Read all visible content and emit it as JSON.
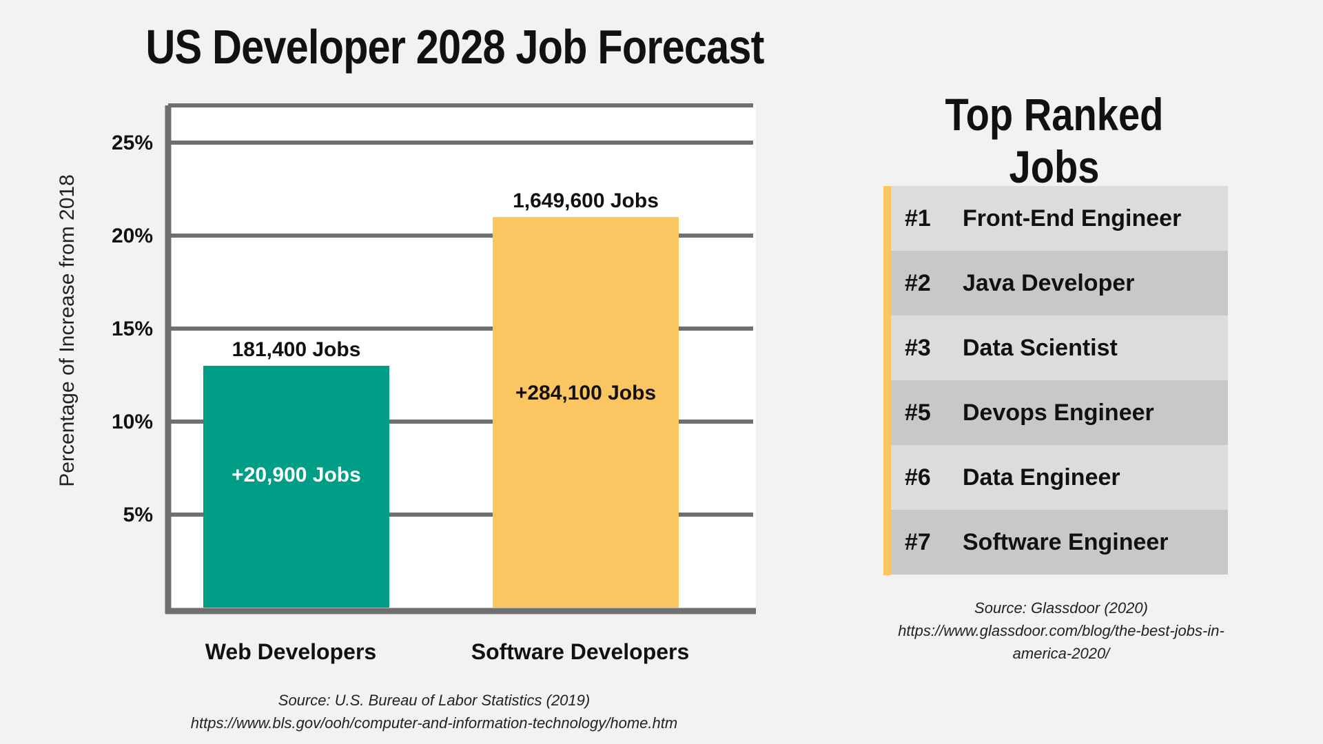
{
  "chart_data": {
    "type": "bar",
    "title": "US Developer 2028 Job Forecast",
    "ylabel": "Percentage of Increase from 2018",
    "xlabel": "",
    "ylim": [
      0,
      27
    ],
    "yticks": [
      5,
      10,
      15,
      20,
      25
    ],
    "ytick_labels": [
      "5%",
      "10%",
      "15%",
      "20%",
      "25%"
    ],
    "grid": true,
    "categories": [
      "Web Developers",
      "Software Developers"
    ],
    "values": [
      13,
      21
    ],
    "colors": [
      "#009e86",
      "#fbc562"
    ],
    "top_labels": [
      "181,400 Jobs",
      "1,649,600 Jobs"
    ],
    "inner_labels": [
      "+20,900 Jobs",
      "+284,100 Jobs"
    ],
    "inner_label_colors": [
      "#ffffff",
      "#111111"
    ]
  },
  "chart_source": {
    "line1": "Source: U.S. Bureau of Labor Statistics (2019)",
    "line2": "https://www.bls.gov/ooh/computer-and-information-technology/home.htm"
  },
  "ranking": {
    "title": "Top Ranked Jobs",
    "accent_color": "#fbc562",
    "items": [
      {
        "rank": "#1",
        "job": "Front-End Engineer"
      },
      {
        "rank": "#2",
        "job": "Java Developer"
      },
      {
        "rank": "#3",
        "job": "Data Scientist"
      },
      {
        "rank": "#5",
        "job": "Devops Engineer"
      },
      {
        "rank": "#6",
        "job": "Data Engineer"
      },
      {
        "rank": "#7",
        "job": "Software Engineer"
      }
    ],
    "row_colors": [
      "#dcdcdc",
      "#c8c8c8"
    ],
    "source_line1": "Source: Glassdoor (2020)",
    "source_line2": "https://www.glassdoor.com/blog/the-best-jobs-in-",
    "source_line3": "america-2020/"
  }
}
